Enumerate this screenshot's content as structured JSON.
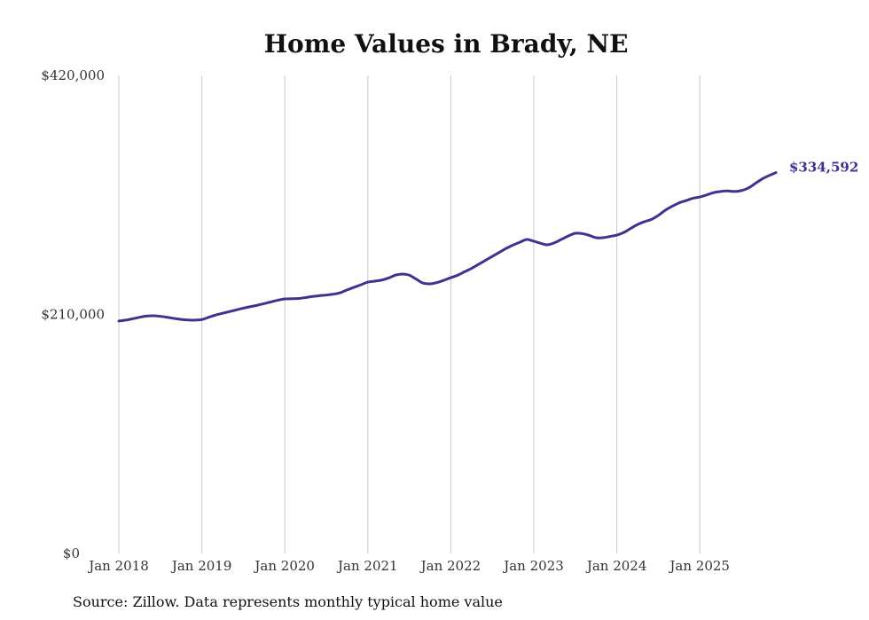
{
  "chart_data": {
    "type": "line",
    "title": "Home Values in Brady, NE",
    "source": "Source: Zillow. Data represents monthly typical home value",
    "xlabel": "",
    "ylabel": "",
    "ylim": [
      0,
      420000
    ],
    "y_ticks": [
      0,
      210000,
      420000
    ],
    "y_tick_labels": [
      "$0",
      "$210,000",
      "$420,000"
    ],
    "x_tick_labels": [
      "Jan 2018",
      "Jan 2019",
      "Jan 2020",
      "Jan 2021",
      "Jan 2022",
      "Jan 2023",
      "Jan 2024",
      "Jan 2025"
    ],
    "x_start": "Jan 2018",
    "x_end": "Dec 2025",
    "grid": "vertical",
    "line_color": "#3d348f",
    "end_label": "$334,592",
    "series": [
      {
        "name": "Typical home value",
        "frequency": "monthly",
        "values": [
          204200,
          205000,
          206200,
          207500,
          208500,
          208800,
          208300,
          207500,
          206500,
          205600,
          205100,
          205000,
          205500,
          207500,
          209500,
          211000,
          212500,
          214000,
          215500,
          216800,
          218000,
          219500,
          221000,
          222500,
          223600,
          223800,
          224000,
          224800,
          225800,
          226500,
          227000,
          227800,
          229000,
          231500,
          233800,
          236000,
          238400,
          239200,
          240200,
          242000,
          244500,
          245500,
          244500,
          241000,
          237500,
          236900,
          238000,
          240000,
          242300,
          244500,
          247500,
          250500,
          254000,
          257500,
          261000,
          264500,
          268000,
          271000,
          273500,
          275800,
          274300,
          272500,
          271200,
          273000,
          276000,
          279000,
          281300,
          281000,
          279500,
          277400,
          277400,
          278500,
          279700,
          282000,
          285500,
          289000,
          291500,
          293500,
          297000,
          301500,
          305000,
          308000,
          310000,
          312000,
          313200,
          315000,
          317000,
          318000,
          318500,
          318000,
          318800,
          321000,
          325000,
          329000,
          332000,
          334592
        ]
      }
    ]
  }
}
